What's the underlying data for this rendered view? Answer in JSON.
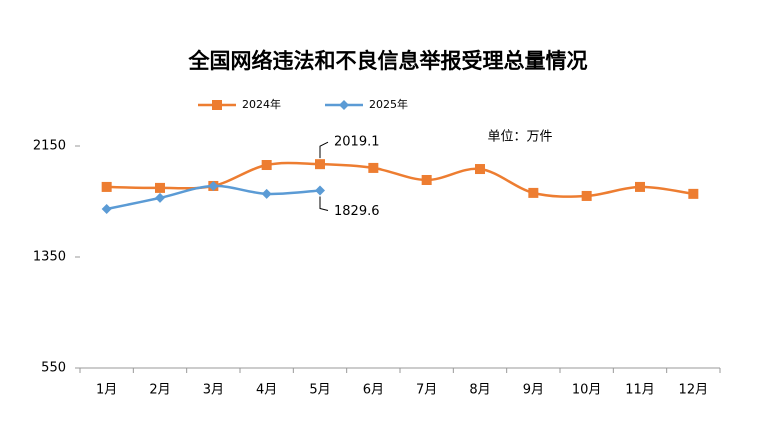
{
  "chart_data": {
    "type": "line",
    "title": "全国网络违法和不良信息举报受理总量情况",
    "unit": "单位：万件",
    "categories": [
      "1月",
      "2月",
      "3月",
      "4月",
      "5月",
      "6月",
      "7月",
      "8月",
      "9月",
      "10月",
      "11月",
      "12月"
    ],
    "series": [
      {
        "name": "2024年",
        "color": "#ED7D31",
        "marker": "square",
        "values": [
          1855,
          1848,
          1862,
          2013,
          2019.1,
          1992,
          1905,
          1984,
          1812,
          1790,
          1855,
          1805
        ]
      },
      {
        "name": "2025年",
        "color": "#5B9BD5",
        "marker": "diamond",
        "values": [
          1696,
          1776,
          1862,
          1805,
          1829.6,
          null,
          null,
          null,
          null,
          null,
          null,
          null
        ]
      }
    ],
    "ylim": [
      550,
      2150
    ],
    "yticks": [
      550,
      1350,
      2150
    ],
    "grid": false
  }
}
